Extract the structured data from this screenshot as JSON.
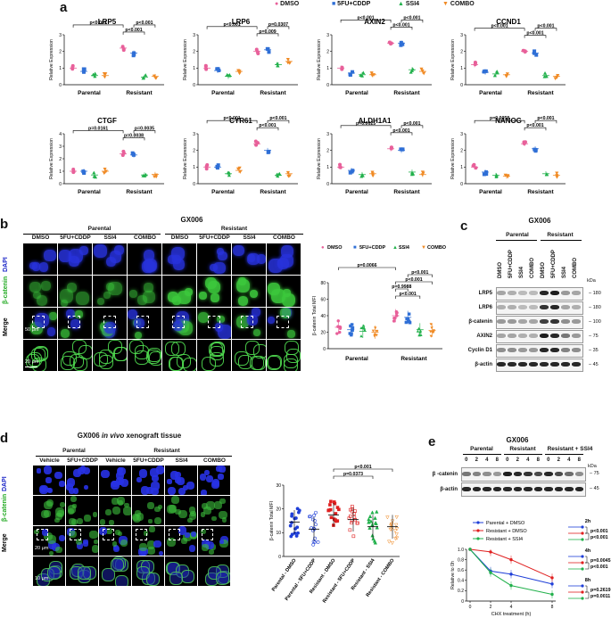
{
  "panels": {
    "a": "a",
    "b": "b",
    "c": "c",
    "d": "d",
    "e": "e"
  },
  "legend_a": {
    "items": [
      "DMSO",
      "5FU+CDDP",
      "SSI4",
      "COMBO"
    ],
    "colors": [
      "#e8609a",
      "#2f6fd6",
      "#22b14c",
      "#f08a24"
    ]
  },
  "panel_a": {
    "ylabel": "Relative Expression",
    "groups": [
      "Parental",
      "Resistant"
    ],
    "charts": [
      {
        "title": "LRP5",
        "ymax": 3,
        "ticks": [
          "0",
          "1",
          "2",
          "3"
        ],
        "means": [
          1.0,
          0.8,
          0.55,
          0.55,
          2.2,
          1.9,
          0.45,
          0.5
        ],
        "pvals": [
          {
            "text": "p<0.001",
            "from": 0,
            "to": 4
          },
          {
            "text": "p<0.001",
            "from": 5,
            "to": 7
          },
          {
            "text": "p<0.001",
            "from": 4,
            "to": 6
          }
        ]
      },
      {
        "title": "LRP6",
        "ymax": 3,
        "ticks": [
          "0",
          "1",
          "2",
          "3"
        ],
        "means": [
          1.0,
          0.85,
          0.5,
          0.8,
          2.0,
          2.1,
          1.2,
          1.4
        ],
        "pvals": [
          {
            "text": "p<0.001",
            "from": 0,
            "to": 4
          },
          {
            "text": "p=0.0307",
            "from": 5,
            "to": 7
          },
          {
            "text": "p=0.009",
            "from": 4,
            "to": 6
          }
        ]
      },
      {
        "title": "AXIN2",
        "ymax": 3,
        "ticks": [
          "0",
          "1",
          "2",
          "3"
        ],
        "means": [
          1.0,
          0.7,
          0.6,
          0.6,
          2.5,
          2.5,
          0.9,
          0.8
        ],
        "pvals": [
          {
            "text": "p<0.001",
            "from": 0,
            "to": 4
          },
          {
            "text": "p<0.001",
            "from": 5,
            "to": 7
          },
          {
            "text": "p<0.001",
            "from": 4,
            "to": 6
          }
        ]
      },
      {
        "title": "CCND1",
        "ymax": 3,
        "ticks": [
          "0",
          "1",
          "2",
          "3"
        ],
        "means": [
          1.2,
          0.75,
          0.65,
          0.6,
          2.0,
          1.9,
          0.55,
          0.5
        ],
        "pvals": [
          {
            "text": "p<0.001",
            "from": 0,
            "to": 4
          },
          {
            "text": "p<0.001",
            "from": 5,
            "to": 7
          },
          {
            "text": "p<0.001",
            "from": 4,
            "to": 6
          }
        ]
      },
      {
        "title": "CTGF",
        "ymax": 4,
        "ticks": [
          "0",
          "1",
          "2",
          "3",
          "4"
        ],
        "means": [
          1.0,
          1.0,
          0.7,
          1.0,
          2.4,
          2.3,
          0.7,
          0.75
        ],
        "pvals": [
          {
            "text": "p=0.0161",
            "from": 0,
            "to": 4
          },
          {
            "text": "p=0.0035",
            "from": 5,
            "to": 7
          },
          {
            "text": "p=0.0038",
            "from": 4,
            "to": 6
          }
        ]
      },
      {
        "title": "CYR61",
        "ymax": 3,
        "ticks": [
          "0",
          "1",
          "2",
          "3"
        ],
        "means": [
          1.0,
          1.0,
          0.6,
          0.8,
          2.4,
          2.0,
          0.5,
          0.6
        ],
        "pvals": [
          {
            "text": "p<0.001",
            "from": 0,
            "to": 4
          },
          {
            "text": "p<0.001",
            "from": 5,
            "to": 7
          },
          {
            "text": "p<0.001",
            "from": 4,
            "to": 6
          }
        ]
      },
      {
        "title": "ALDH1A1",
        "ymax": 3,
        "ticks": [
          "0",
          "1",
          "2",
          "3"
        ],
        "means": [
          1.0,
          0.8,
          0.55,
          0.6,
          2.1,
          2.0,
          0.7,
          0.55
        ],
        "pvals": [
          {
            "text": "p=0.0025",
            "from": 0,
            "to": 4
          },
          {
            "text": "p<0.001",
            "from": 5,
            "to": 7
          },
          {
            "text": "p<0.001",
            "from": 4,
            "to": 6
          }
        ]
      },
      {
        "title": "NANOG",
        "ymax": 3,
        "ticks": [
          "0",
          "1",
          "2",
          "3"
        ],
        "means": [
          1.0,
          0.7,
          0.5,
          0.45,
          2.4,
          2.1,
          0.6,
          0.5
        ],
        "pvals": [
          {
            "text": "p=0.0058",
            "from": 0,
            "to": 4
          },
          {
            "text": "p<0.001",
            "from": 5,
            "to": 7
          },
          {
            "text": "p<0.001",
            "from": 4,
            "to": 6
          }
        ]
      }
    ]
  },
  "panel_b": {
    "title": "GX006",
    "groups": [
      "Parental",
      "Resistant"
    ],
    "columns": [
      "DMSO",
      "5FU+CDDP",
      "SSI4",
      "COMBO",
      "DMSO",
      "5FU+CDDP",
      "SSI4",
      "COMBO"
    ],
    "rows": [
      "DAPI",
      "β-catenin",
      "Merge"
    ],
    "scalebars": [
      "50 μm",
      "20 μm"
    ],
    "chart": {
      "ylabel": "β-catenin Total MFI",
      "ymax": 80,
      "ticks": [
        "0",
        "20",
        "40",
        "60",
        "80"
      ],
      "groups": [
        "Parental",
        "Resistant"
      ],
      "legend": [
        "DMSO",
        "5FU+CDDP",
        "SSI4",
        "COMBO"
      ],
      "means": [
        26,
        23,
        21,
        20,
        40,
        38,
        23,
        22
      ],
      "pvals": [
        {
          "text": "p=0.0066",
          "from": 0,
          "to": 4
        },
        {
          "text": "p<0.001",
          "from": 5,
          "to": 7
        },
        {
          "text": "p<0.001",
          "from": 4,
          "to": 7
        },
        {
          "text": "p=0.9988",
          "from": 4,
          "to": 5
        },
        {
          "text": "p<0.001",
          "from": 4,
          "to": 6
        }
      ]
    }
  },
  "panel_c": {
    "title": "GX006",
    "groups": [
      "Parental",
      "Resistant"
    ],
    "lanes": [
      "DMSO",
      "5FU+CDDP",
      "SSI4",
      "COMBO",
      "DMSO",
      "5FU+CDDP",
      "SSI4",
      "COMBO"
    ],
    "proteins": [
      "LRP5",
      "LRP6",
      "β-catenin",
      "AXIN2",
      "Cyclin D1",
      "β-actin"
    ],
    "kda_header": "kDa",
    "kda": [
      "180",
      "180",
      "100",
      "75",
      "35",
      "45"
    ],
    "intensity": [
      [
        0.35,
        0.3,
        0.25,
        0.25,
        0.9,
        0.95,
        0.4,
        0.35
      ],
      [
        0.3,
        0.3,
        0.25,
        0.25,
        0.85,
        0.9,
        0.35,
        0.3
      ],
      [
        0.4,
        0.4,
        0.35,
        0.35,
        0.8,
        0.85,
        0.45,
        0.4
      ],
      [
        0.35,
        0.35,
        0.3,
        0.3,
        0.95,
        0.9,
        0.55,
        0.4
      ],
      [
        0.45,
        0.45,
        0.4,
        0.4,
        0.9,
        0.9,
        0.5,
        0.45
      ],
      [
        0.9,
        0.9,
        0.9,
        0.9,
        0.9,
        0.9,
        0.9,
        0.9
      ]
    ]
  },
  "panel_d": {
    "title": "GX006 in vivo xenograft tissue",
    "title_prefix": "GX006 ",
    "title_italic": "in vivo",
    "title_suffix": " xenograft tissue",
    "groups": [
      "Parental",
      "Resistant"
    ],
    "columns": [
      "Vehicle",
      "5FU+CDDP",
      "Vehicle",
      "5FU+CDDP",
      "SSI4",
      "COMBO"
    ],
    "rows": [
      "DAPI",
      "β-catenin",
      "Merge"
    ],
    "scalebars": [
      "20 μm",
      "10 μm"
    ],
    "chart": {
      "ylabel": "β-catenin Total MFI",
      "ymax": 30,
      "ticks": [
        "0",
        "10",
        "20",
        "30"
      ],
      "categories": [
        "Parental - DMSO",
        "Parental - 5FU+CDDP",
        "Resistant - DMSO",
        "Resistant - 5FU+CDDP",
        "Resistant - SSI4",
        "Resistant - COMBO"
      ],
      "means": [
        14.5,
        11.5,
        17.5,
        15.5,
        12.5,
        12.5
      ],
      "pvals": [
        {
          "text": "p<0.001",
          "from": 2,
          "to": 5
        },
        {
          "text": "p=0.0373",
          "from": 2,
          "to": 4
        }
      ]
    }
  },
  "panel_e": {
    "title": "GX006",
    "groups": [
      "Parental",
      "Resistant",
      "Resistant + SSI4"
    ],
    "timepoints": [
      "0",
      "2",
      "4",
      "8",
      "0",
      "2",
      "4",
      "8",
      "0",
      "2",
      "4",
      "8"
    ],
    "proteins": [
      "β -catenin",
      "β-actin"
    ],
    "kda_header": "kDa",
    "kda": [
      "75",
      "45"
    ],
    "blot": [
      [
        0.55,
        0.5,
        0.45,
        0.4,
        0.95,
        0.9,
        0.85,
        0.75,
        0.9,
        0.75,
        0.6,
        0.45
      ],
      [
        0.9,
        0.9,
        0.9,
        0.9,
        0.9,
        0.9,
        0.9,
        0.9,
        0.9,
        0.9,
        0.9,
        0.9
      ]
    ],
    "chart_data": {
      "type": "line",
      "x": [
        0,
        2,
        4,
        8
      ],
      "xlabel": "CHX treatment (h)",
      "ylabel": "Relative to 0h",
      "ylim": [
        0,
        1.0
      ],
      "yticks": [
        "0",
        "0.2",
        "0.4",
        "0.6",
        "0.8",
        "1.0"
      ],
      "xticks": [
        "0",
        "2",
        "4",
        "8"
      ],
      "series": [
        {
          "name": "Parental + DMSO",
          "color": "#1f3fd8",
          "values": [
            1.0,
            0.58,
            0.52,
            0.33
          ]
        },
        {
          "name": "Resistant + DMSO",
          "color": "#e02020",
          "values": [
            1.0,
            0.95,
            0.8,
            0.45
          ]
        },
        {
          "name": "Resistant + SSI4",
          "color": "#22b14c",
          "values": [
            1.0,
            0.55,
            0.3,
            0.13
          ]
        }
      ],
      "stats": [
        {
          "time": "2h",
          "top": "p<0.001",
          "bottom": "p<0.001"
        },
        {
          "time": "4h",
          "top": "p=0.0045",
          "bottom": "p<0.001"
        },
        {
          "time": "8h",
          "top": "p=0.2619",
          "bottom": "p=0.0011"
        }
      ]
    }
  }
}
